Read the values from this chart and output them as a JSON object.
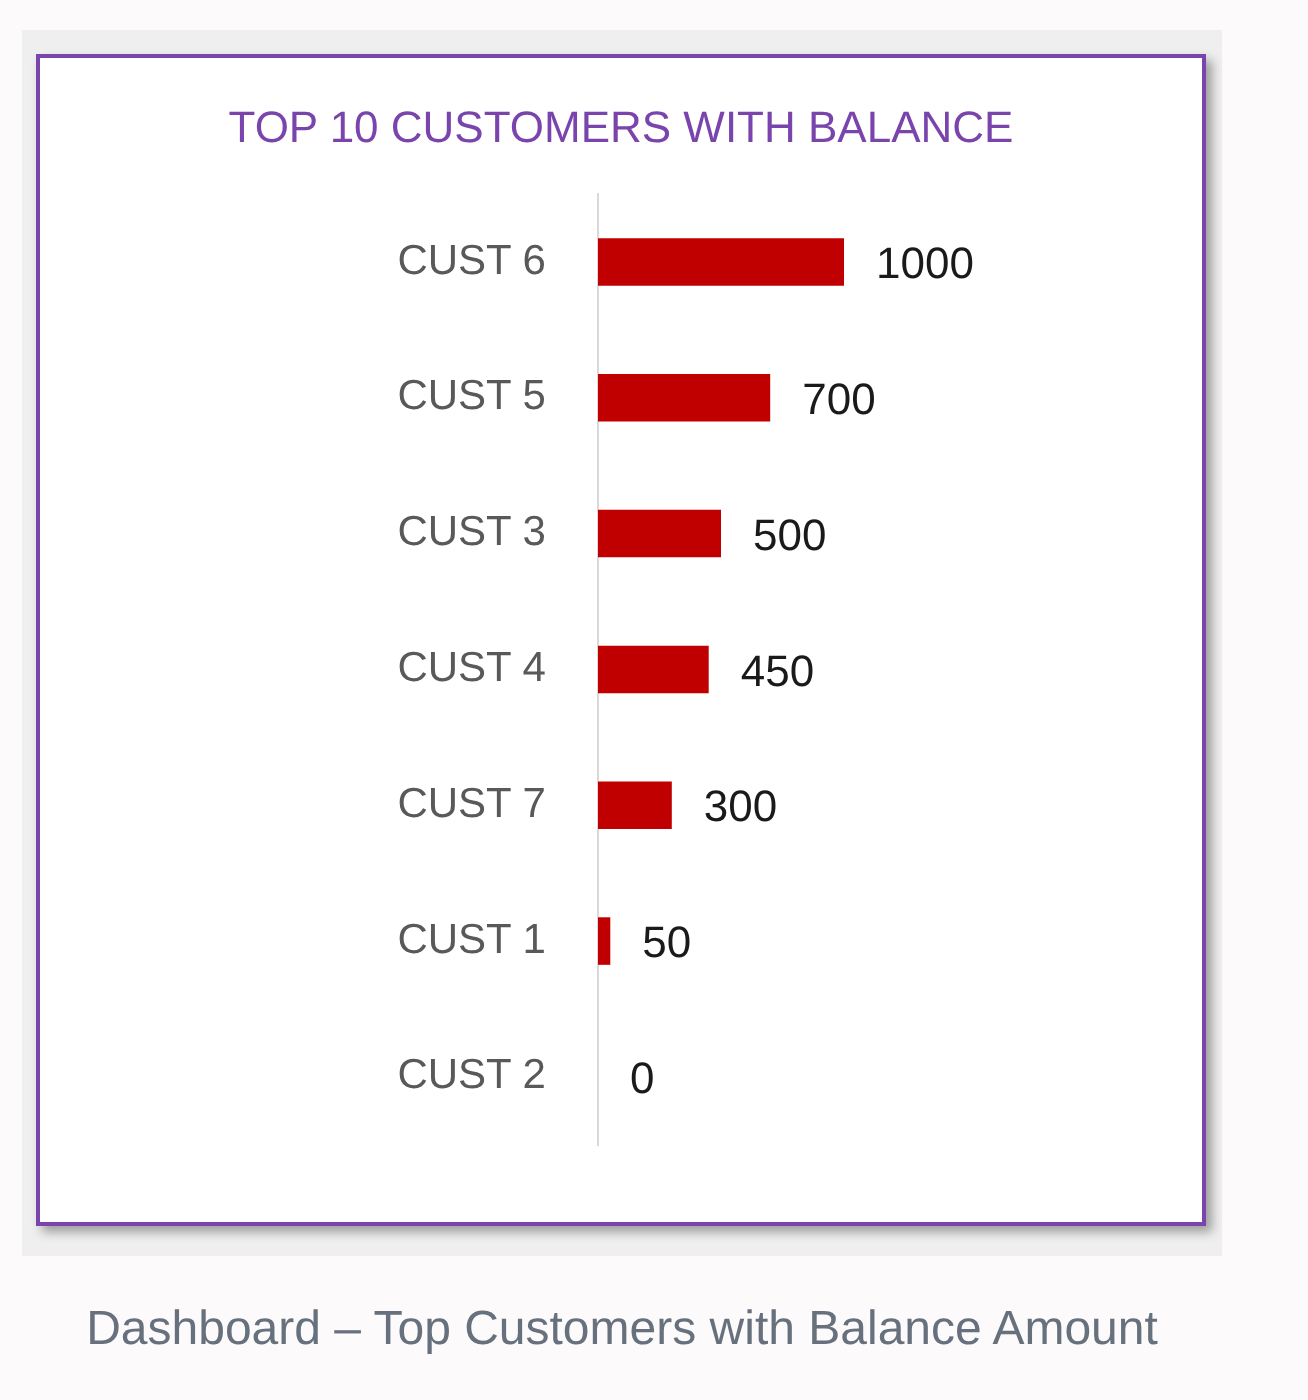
{
  "chart_data": {
    "type": "bar",
    "orientation": "horizontal",
    "title": "TOP 10 CUSTOMERS WITH BALANCE",
    "categories": [
      "CUST 6",
      "CUST 5",
      "CUST 3",
      "CUST 4",
      "CUST 7",
      "CUST 1",
      "CUST 2"
    ],
    "values": [
      1000,
      700,
      500,
      450,
      300,
      50,
      0
    ],
    "color": "#c00000",
    "data_labels": true,
    "tick_labels": "y",
    "annotations": [
      "Dashboard – Top Customers with Balance Amount"
    ]
  }
}
